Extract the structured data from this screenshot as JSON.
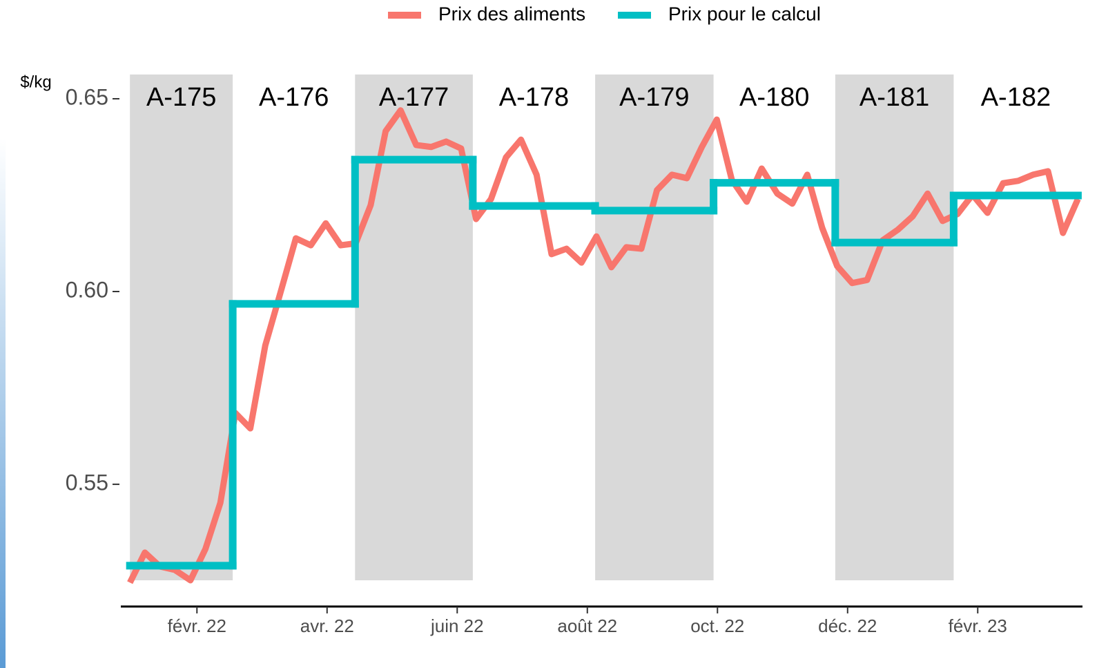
{
  "chart_data": {
    "type": "line",
    "y_label": "$/kg",
    "xlim": [
      0.83,
      15.61
    ],
    "ylim": [
      0.5183,
      0.6577
    ],
    "xticks": [
      {
        "value": 2,
        "label": "févr. 22"
      },
      {
        "value": 4,
        "label": "avr. 22"
      },
      {
        "value": 6,
        "label": "juin 22"
      },
      {
        "value": 8,
        "label": "août 22"
      },
      {
        "value": 10,
        "label": "oct. 22"
      },
      {
        "value": 12,
        "label": "déc. 22"
      },
      {
        "value": 14,
        "label": "févr. 23"
      }
    ],
    "yticks": [
      0.55,
      {
        "value": 0.6,
        "label": "0.60"
      },
      0.65
    ],
    "grid": false,
    "legend": "top",
    "periods": {
      "labels": [
        "A-175",
        "A-176",
        "A-177",
        "A-178",
        "A-179",
        "A-180",
        "A-181",
        "A-182"
      ],
      "edges": [
        0.97,
        2.55,
        4.43,
        6.24,
        8.12,
        9.94,
        11.81,
        13.63,
        15.54
      ],
      "shaded": [
        true,
        false,
        true,
        false,
        true,
        false,
        true,
        false
      ],
      "band_color": "#d9d9d9",
      "band_range": [
        0.5251,
        0.6563
      ],
      "label_y": 0.65
    },
    "series": [
      {
        "name": "Prix des aliments",
        "color": "#f8766d",
        "x": [
          0.97,
          1.2,
          1.43,
          1.66,
          1.9,
          2.13,
          2.36,
          2.59,
          2.82,
          3.05,
          3.28,
          3.52,
          3.75,
          3.98,
          4.21,
          4.44,
          4.67,
          4.9,
          5.13,
          5.37,
          5.6,
          5.83,
          6.06,
          6.29,
          6.52,
          6.75,
          6.98,
          7.22,
          7.45,
          7.68,
          7.91,
          8.14,
          8.37,
          8.6,
          8.83,
          9.07,
          9.3,
          9.53,
          9.76,
          9.99,
          10.22,
          10.45,
          10.68,
          10.92,
          11.15,
          11.38,
          11.61,
          11.84,
          12.07,
          12.3,
          12.54,
          12.77,
          13.0,
          13.23,
          13.46,
          13.69,
          13.92,
          14.15,
          14.39,
          14.62,
          14.85,
          15.08,
          15.31,
          15.54
        ],
        "values": [
          0.5245,
          0.5323,
          0.5287,
          0.5278,
          0.5251,
          0.5332,
          0.5452,
          0.5685,
          0.5645,
          0.586,
          0.5995,
          0.6138,
          0.612,
          0.6177,
          0.612,
          0.6125,
          0.6224,
          0.6416,
          0.647,
          0.638,
          0.6375,
          0.6389,
          0.6371,
          0.6188,
          0.624,
          0.6348,
          0.6394,
          0.6303,
          0.6097,
          0.6111,
          0.6075,
          0.6143,
          0.6063,
          0.6115,
          0.6111,
          0.6263,
          0.6303,
          0.6294,
          0.6375,
          0.6446,
          0.629,
          0.6233,
          0.6319,
          0.6254,
          0.6228,
          0.6303,
          0.6165,
          0.6066,
          0.6022,
          0.603,
          0.6133,
          0.616,
          0.6195,
          0.6254,
          0.6183,
          0.6201,
          0.6251,
          0.6204,
          0.6281,
          0.6287,
          0.6303,
          0.6312,
          0.6152,
          0.624
        ]
      },
      {
        "name": "Prix pour le calcul",
        "color": "#00bfc4",
        "values": [
          0.5289,
          0.5968,
          0.6342,
          0.6222,
          0.621,
          0.6282,
          0.6127,
          0.6249
        ]
      }
    ]
  }
}
